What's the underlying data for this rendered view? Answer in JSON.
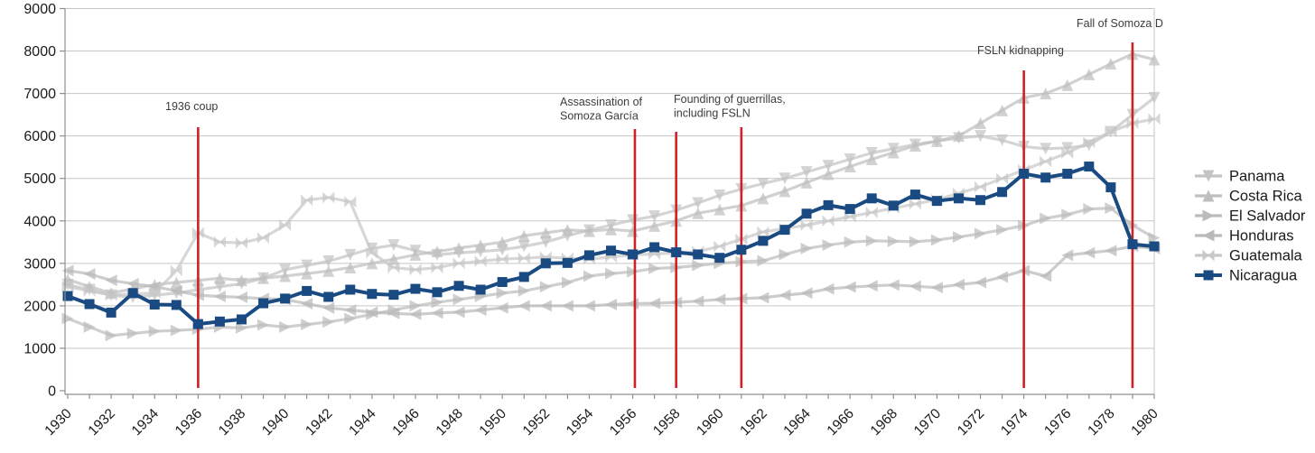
{
  "chart_data": {
    "type": "line",
    "title": "",
    "xlabel": "",
    "ylabel": "",
    "ylim": [
      0,
      9000
    ],
    "y_ticks": [
      0,
      1000,
      2000,
      3000,
      4000,
      5000,
      6000,
      7000,
      8000,
      9000
    ],
    "x_tick_labels": [
      "1930",
      "1932",
      "1934",
      "1936",
      "1938",
      "1940",
      "1942",
      "1944",
      "1946",
      "1948",
      "1950",
      "1952",
      "1954",
      "1956",
      "1958",
      "1960",
      "1962",
      "1964",
      "1966",
      "1968",
      "1970",
      "1972",
      "1974",
      "1976",
      "1978",
      "1980"
    ],
    "years": [
      1930,
      1931,
      1932,
      1933,
      1934,
      1935,
      1936,
      1937,
      1938,
      1939,
      1940,
      1941,
      1942,
      1943,
      1944,
      1945,
      1946,
      1947,
      1948,
      1949,
      1950,
      1951,
      1952,
      1953,
      1954,
      1955,
      1956,
      1957,
      1958,
      1959,
      1960,
      1961,
      1962,
      1963,
      1964,
      1965,
      1966,
      1967,
      1968,
      1969,
      1970,
      1971,
      1972,
      1973,
      1974,
      1975,
      1976,
      1977,
      1978,
      1979,
      1980
    ],
    "grid": true,
    "legend_position": "right",
    "series": [
      {
        "name": "Panama",
        "marker": "triangle-down",
        "color": "#c4c4c4",
        "values": [
          2500,
          2380,
          2250,
          2200,
          2250,
          2300,
          2380,
          2450,
          2520,
          2650,
          2850,
          2950,
          3050,
          3200,
          3350,
          3430,
          3300,
          3200,
          3250,
          3280,
          3320,
          3400,
          3500,
          3650,
          3780,
          3900,
          4020,
          4110,
          4250,
          4420,
          4600,
          4750,
          4880,
          5000,
          5150,
          5300,
          5450,
          5600,
          5700,
          5800,
          5880,
          5950,
          6000,
          5900,
          5750,
          5700,
          5720,
          5780,
          6100,
          6500,
          6900
        ]
      },
      {
        "name": "Costa Rica",
        "marker": "triangle-up",
        "color": "#bfbfbf",
        "values": [
          2620,
          2450,
          2300,
          2400,
          2500,
          2550,
          2600,
          2650,
          2600,
          2650,
          2700,
          2760,
          2820,
          2900,
          3000,
          3100,
          3200,
          3280,
          3360,
          3430,
          3500,
          3650,
          3720,
          3790,
          3760,
          3800,
          3760,
          3880,
          4000,
          4180,
          4270,
          4360,
          4530,
          4700,
          4900,
          5100,
          5280,
          5450,
          5610,
          5770,
          5880,
          6000,
          6300,
          6600,
          6900,
          7000,
          7200,
          7450,
          7700,
          7930,
          7800
        ]
      },
      {
        "name": "El Salvador",
        "marker": "triangle-right",
        "color": "#bcbcbc",
        "values": [
          1700,
          1500,
          1300,
          1350,
          1400,
          1420,
          1450,
          1500,
          1480,
          1550,
          1500,
          1560,
          1620,
          1700,
          1800,
          1900,
          2000,
          2080,
          2150,
          2220,
          2300,
          2350,
          2450,
          2550,
          2700,
          2760,
          2800,
          2880,
          2900,
          2950,
          3000,
          3040,
          3060,
          3210,
          3350,
          3430,
          3500,
          3530,
          3520,
          3510,
          3550,
          3620,
          3700,
          3790,
          3890,
          4060,
          4150,
          4280,
          4300,
          3900,
          3600
        ]
      },
      {
        "name": "Honduras",
        "marker": "triangle-left",
        "color": "#bababa",
        "values": [
          2830,
          2750,
          2600,
          2520,
          2450,
          2350,
          2250,
          2220,
          2200,
          2170,
          2150,
          2050,
          1950,
          1900,
          1850,
          1820,
          1800,
          1830,
          1850,
          1900,
          1950,
          2000,
          2000,
          2000,
          2000,
          2030,
          2050,
          2060,
          2080,
          2110,
          2150,
          2170,
          2190,
          2250,
          2300,
          2400,
          2440,
          2470,
          2490,
          2460,
          2430,
          2500,
          2550,
          2680,
          2830,
          2700,
          3190,
          3250,
          3300,
          3400,
          3350
        ]
      },
      {
        "name": "Guatemala",
        "marker": "bowtie",
        "color": "#c8c8c8",
        "values": [
          2450,
          2350,
          2250,
          2280,
          2300,
          2830,
          3720,
          3500,
          3480,
          3600,
          3900,
          4490,
          4550,
          4450,
          3250,
          2900,
          2850,
          2900,
          3000,
          3050,
          3100,
          3120,
          3150,
          3120,
          3100,
          3150,
          3200,
          3220,
          3250,
          3280,
          3400,
          3570,
          3740,
          3820,
          3900,
          4000,
          4100,
          4200,
          4300,
          4400,
          4500,
          4650,
          4800,
          5000,
          5200,
          5400,
          5600,
          5850,
          6100,
          6300,
          6400
        ]
      },
      {
        "name": "Nicaragua",
        "marker": "square",
        "color": "#1a4a82",
        "values": [
          2230,
          2040,
          1840,
          2300,
          2030,
          2020,
          1570,
          1630,
          1680,
          2060,
          2170,
          2350,
          2210,
          2380,
          2280,
          2260,
          2400,
          2320,
          2470,
          2380,
          2560,
          2680,
          3000,
          3010,
          3190,
          3300,
          3210,
          3380,
          3260,
          3210,
          3130,
          3320,
          3530,
          3790,
          4170,
          4370,
          4280,
          4530,
          4360,
          4620,
          4470,
          4530,
          4490,
          4680,
          5110,
          5020,
          5110,
          5280,
          4790,
          3450,
          3400
        ]
      }
    ],
    "annotations": [
      {
        "id": "1936-coup",
        "year": 1936.0,
        "label_lines": [
          "1936 coup"
        ],
        "text_x": 183,
        "text_y": 122,
        "line_top": 141
      },
      {
        "id": "assassination-somoza-garcia",
        "year": 1956.1,
        "label_lines": [
          "Assassination of",
          "Somoza García"
        ],
        "text_x": 620,
        "text_y": 117,
        "line_top": 143
      },
      {
        "id": "founding-of-guerrillas",
        "year": 1958.0,
        "label_lines": [
          "Founding of guerrillas,",
          "including FSLN"
        ],
        "text_x": 746,
        "text_y": 114,
        "line_top": 146
      },
      {
        "id": "fsln-founded",
        "year": 1961.0,
        "label_lines": [],
        "text_x": 0,
        "text_y": 0,
        "line_top": 141
      },
      {
        "id": "fsln-kidnapping",
        "year": 1974.0,
        "label_lines": [
          "FSLN kidnapping"
        ],
        "text_x": 1082,
        "text_y": 60,
        "line_top": 78
      },
      {
        "id": "fall-of-somoza",
        "year": 1979.0,
        "label_lines": [
          "Fall of Somoza D"
        ],
        "text_x": 1192,
        "text_y": 30,
        "line_top": 47
      }
    ],
    "colors": {
      "event_line": "#cf2128",
      "gridline": "#c6c6c6",
      "axis": "#8f8f8f",
      "tick_label": "#1a1a1a",
      "annotation_text": "#3c3c3c",
      "legend_text": "#1a1a1a",
      "background": "#ffffff"
    }
  }
}
